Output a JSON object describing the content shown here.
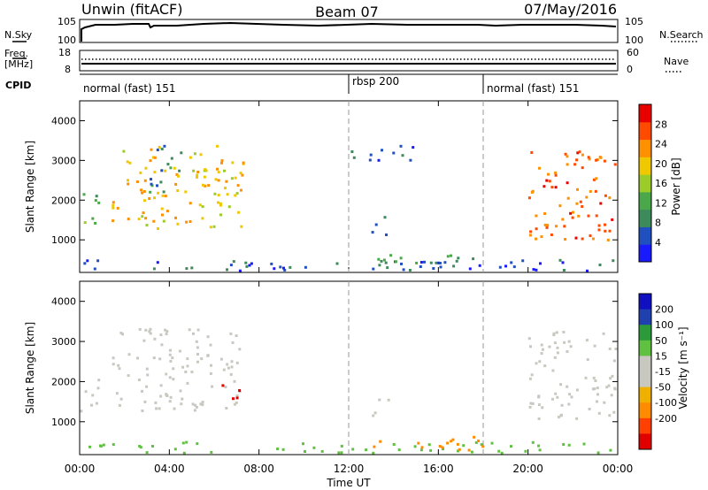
{
  "header": {
    "station": "Unwin (fitACF)",
    "beam": "Beam 07",
    "date": "07/May/2016"
  },
  "top_panels": {
    "nsky_label": "N.Sky",
    "nsky_ticks": [
      "10^5",
      "10^0"
    ],
    "nsearch_label": "N.Search",
    "nsearch_ticks": [
      "10^5",
      "10^0"
    ],
    "freq_label": "Freq.",
    "freq_unit": "[MHz]",
    "freq_ticks": [
      "18",
      "8"
    ],
    "nave_label": "Nave",
    "nave_ticks": [
      "60",
      "0"
    ],
    "cpid_label": "CPID",
    "cpid_segments": [
      {
        "label": "normal (fast) 151",
        "start_h": 0,
        "end_h": 12
      },
      {
        "label": "rbsp 200",
        "start_h": 12,
        "end_h": 18
      },
      {
        "label": "normal (fast) 151",
        "start_h": 18,
        "end_h": 24
      }
    ]
  },
  "colors": {
    "power": [
      "#1a1aff",
      "#2050c0",
      "#3d8a5a",
      "#4aa84a",
      "#9ccc2a",
      "#f0c800",
      "#ff9000",
      "#ff4a00",
      "#e80000"
    ],
    "velocity": [
      "#e00000",
      "#ff4000",
      "#ff8c00",
      "#f0b000",
      "#c8c8c0",
      "#c8c8c0",
      "#60c040",
      "#2a9a3a",
      "#2040b0",
      "#1010c0"
    ]
  },
  "chart_data": [
    {
      "type": "heatmap",
      "panel": "power",
      "ylabel": "Slant Range [km]",
      "ylim": [
        180,
        4500
      ],
      "yticks": [
        1000,
        2000,
        3000,
        4000
      ],
      "xlim": [
        0,
        24
      ],
      "colorbar_label": "Power [dB]",
      "colorbar_ticks": [
        4,
        8,
        12,
        16,
        20,
        24,
        28
      ],
      "colorbar_range": [
        0,
        32
      ],
      "regions": [
        {
          "name": "early-band",
          "t0": 0.0,
          "t1": 0.8,
          "r0": 1250,
          "r1": 2300,
          "v": 12
        },
        {
          "name": "morning-arc",
          "t0": 1.4,
          "t1": 7.3,
          "r0": 1300,
          "r1": 3400,
          "v": 20
        },
        {
          "name": "morning-mid",
          "t0": 3.0,
          "t1": 4.5,
          "r0": 2200,
          "r1": 3500,
          "v": 8
        },
        {
          "name": "midday-blob",
          "t0": 13.0,
          "t1": 13.8,
          "r0": 1150,
          "r1": 1700,
          "v": 8
        },
        {
          "name": "midday-top",
          "t0": 12.0,
          "t1": 15.0,
          "r0": 3000,
          "r1": 3450,
          "v": 6
        },
        {
          "name": "near-range",
          "t0": 0.0,
          "t1": 24.0,
          "r0": 200,
          "r1": 520,
          "v": 6
        },
        {
          "name": "near-range-strong",
          "t0": 13.0,
          "t1": 18.0,
          "r0": 300,
          "r1": 650,
          "v": 10
        },
        {
          "name": "evening-arc",
          "t0": 20.0,
          "t1": 24.0,
          "r0": 1000,
          "r1": 3300,
          "v": 26
        }
      ]
    },
    {
      "type": "heatmap",
      "panel": "velocity",
      "ylabel": "Slant Range [km]",
      "xlabel": "Time UT",
      "ylim": [
        180,
        4500
      ],
      "yticks": [
        1000,
        2000,
        3000,
        4000
      ],
      "xlim": [
        0,
        24
      ],
      "xticks": [
        "00:00",
        "04:00",
        "08:00",
        "12:00",
        "16:00",
        "20:00",
        "00:00"
      ],
      "colorbar_label": "Velocity [m s⁻¹]",
      "colorbar_ticks": [
        "200",
        "100",
        "50",
        "15",
        "-15",
        "-50",
        "-100",
        "-200"
      ],
      "regions": [
        {
          "name": "early-band",
          "t0": 0.0,
          "t1": 0.8,
          "r0": 1250,
          "r1": 2300,
          "v": 0
        },
        {
          "name": "morning-arc",
          "t0": 1.4,
          "t1": 7.3,
          "r0": 1300,
          "r1": 3400,
          "v": 0
        },
        {
          "name": "red-patch",
          "t0": 6.3,
          "t1": 7.3,
          "r0": 1500,
          "r1": 2000,
          "v": -250
        },
        {
          "name": "midday-blob",
          "t0": 13.0,
          "t1": 13.8,
          "r0": 1150,
          "r1": 1700,
          "v": 0
        },
        {
          "name": "near-range",
          "t0": 0.0,
          "t1": 24.0,
          "r0": 200,
          "r1": 520,
          "v": 30
        },
        {
          "name": "near-range-orange",
          "t0": 13.0,
          "t1": 18.0,
          "r0": 300,
          "r1": 650,
          "v": -60
        },
        {
          "name": "evening-arc",
          "t0": 20.0,
          "t1": 24.0,
          "r0": 1100,
          "r1": 3300,
          "v": 0
        }
      ]
    }
  ]
}
